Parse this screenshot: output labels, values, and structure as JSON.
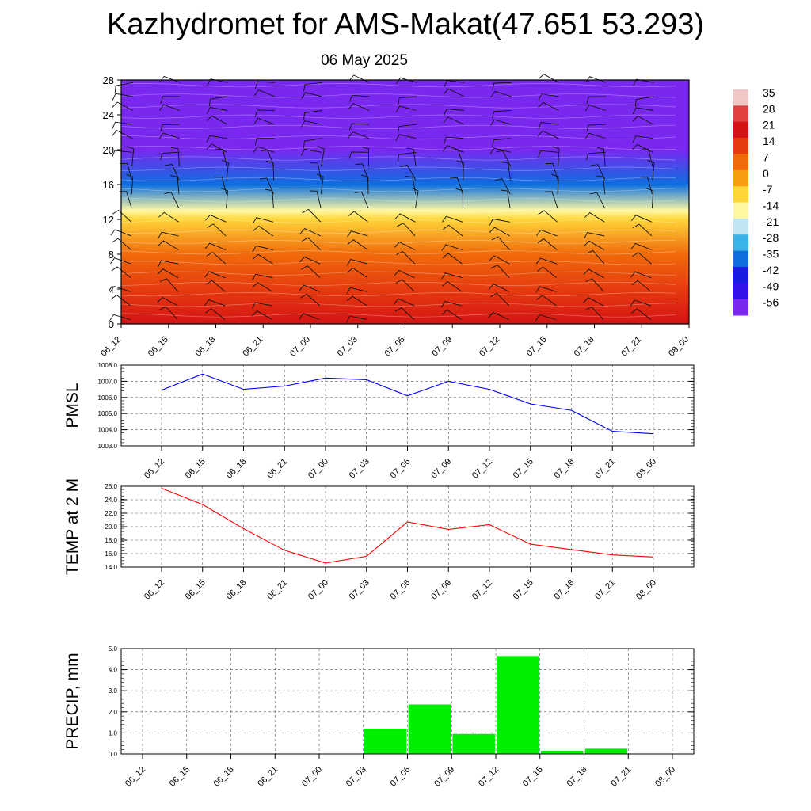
{
  "title": "Kazhydromet for AMS-Makat(47.651 53.293)",
  "subtitle": "06 May 2025",
  "time_labels": [
    "06_12",
    "06_15",
    "06_18",
    "06_21",
    "07_00",
    "07_03",
    "07_06",
    "07_09",
    "07_12",
    "07_15",
    "07_18",
    "07_21",
    "08_00"
  ],
  "chart_data": [
    {
      "type": "heatmap",
      "title": "",
      "xlabel": "",
      "ylabel": "",
      "categories": [
        "06_12",
        "06_15",
        "06_18",
        "06_21",
        "07_00",
        "07_03",
        "07_06",
        "07_09",
        "07_12",
        "07_15",
        "07_18",
        "07_21",
        "08_00"
      ],
      "y_ticks": [
        0,
        4,
        8,
        12,
        16,
        20,
        24,
        28
      ],
      "ylim": [
        0,
        28
      ],
      "colorbar_labels": [
        35,
        28,
        21,
        14,
        7,
        0,
        -7,
        -14,
        -21,
        -28,
        -35,
        -42,
        -49,
        -56
      ],
      "colorbar_colors": [
        "#f3c6c6",
        "#e04040",
        "#d41414",
        "#e63b0f",
        "#f06a0a",
        "#f99b10",
        "#ffd53a",
        "#fff8a0",
        "#bfe6f2",
        "#39b3e8",
        "#0d6fe0",
        "#1a1ae0",
        "#3212e8",
        "#7a28f0"
      ],
      "temperature_profile": [
        {
          "level": 0,
          "value": 21
        },
        {
          "level": 4,
          "value": 14
        },
        {
          "level": 8,
          "value": 7
        },
        {
          "level": 12,
          "value": -7
        },
        {
          "level": 13,
          "value": -14
        },
        {
          "level": 16,
          "value": -35
        },
        {
          "level": 20,
          "value": -56
        },
        {
          "level": 24,
          "value": -56
        },
        {
          "level": 28,
          "value": -56
        }
      ]
    },
    {
      "type": "line",
      "ylabel": "PMSL",
      "categories": [
        "06_12",
        "06_15",
        "06_18",
        "06_21",
        "07_00",
        "07_03",
        "07_06",
        "07_09",
        "07_12",
        "07_15",
        "07_18",
        "07_21",
        "08_00"
      ],
      "series": [
        {
          "color": "#0000ff",
          "values": [
            1006.45,
            1007.45,
            1006.5,
            1006.7,
            1007.2,
            1007.1,
            1006.1,
            1007.0,
            1006.5,
            1005.6,
            1005.2,
            1003.9,
            1003.75
          ]
        }
      ],
      "ylim": [
        1003.0,
        1008.0
      ],
      "y_ticks": [
        "1003.0",
        "1004.0",
        "1005.0",
        "1006.0",
        "1007.0",
        "1008.0"
      ],
      "grid": true
    },
    {
      "type": "line",
      "ylabel": "TEMP at 2 M",
      "categories": [
        "06_12",
        "06_15",
        "06_18",
        "06_21",
        "07_00",
        "07_03",
        "07_06",
        "07_09",
        "07_12",
        "07_15",
        "07_18",
        "07_21",
        "08_00"
      ],
      "series": [
        {
          "color": "#ff0000",
          "values": [
            25.7,
            23.3,
            19.7,
            16.5,
            14.6,
            15.6,
            20.7,
            19.6,
            20.3,
            17.4,
            16.6,
            15.8,
            15.5
          ]
        }
      ],
      "ylim": [
        14.0,
        26.0
      ],
      "y_ticks": [
        "14.0",
        "16.0",
        "18.0",
        "20.0",
        "22.0",
        "24.0",
        "26.0"
      ],
      "grid": true
    },
    {
      "type": "bar",
      "ylabel": "PRECIP, mm",
      "categories": [
        "06_12",
        "06_15",
        "06_18",
        "06_21",
        "07_00",
        "07_03",
        "07_06",
        "07_09",
        "07_12",
        "07_15",
        "07_18",
        "07_21",
        "08_00"
      ],
      "values": [
        0,
        0,
        0,
        0,
        0,
        0,
        1.2,
        2.35,
        0.95,
        4.65,
        0.15,
        0.25,
        0
      ],
      "bar_color": "#00ee00",
      "ylim": [
        0.0,
        5.0
      ],
      "y_ticks": [
        "0.0",
        "1.0",
        "2.0",
        "3.0",
        "4.0",
        "5.0"
      ],
      "grid": true
    }
  ]
}
